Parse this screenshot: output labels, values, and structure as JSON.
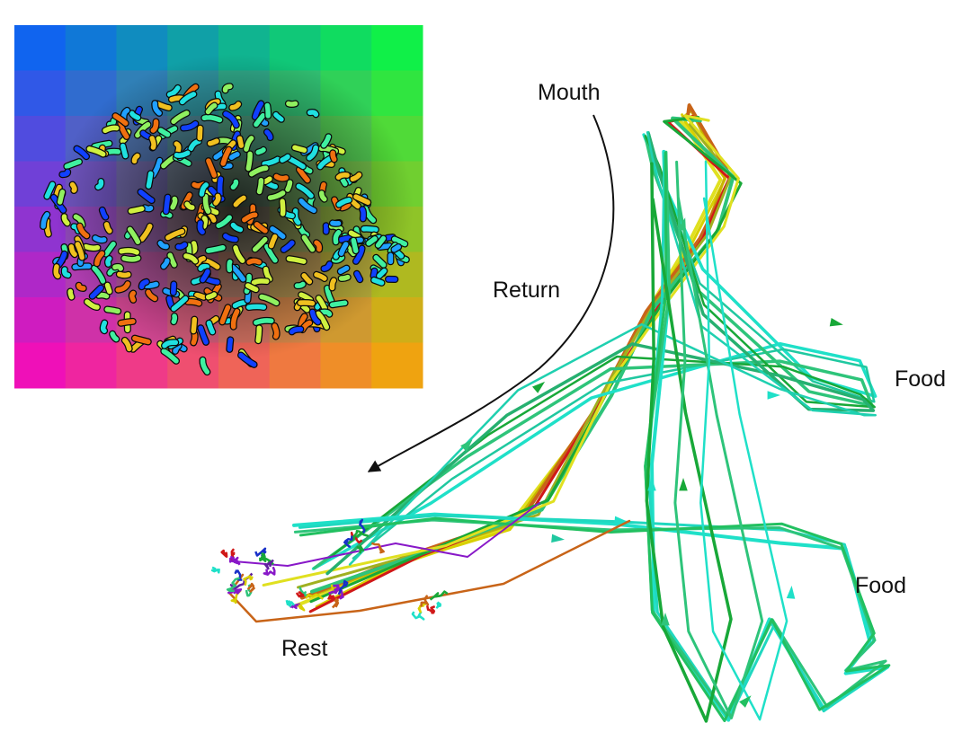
{
  "labels": {
    "mouth": "Mouth",
    "return": "Return",
    "food_upper": "Food",
    "food_lower": "Food",
    "rest": "Rest"
  },
  "colors": {
    "background": "#ffffff",
    "text": "#111111",
    "arrow": "#111111",
    "map_top_left": "#0060ff",
    "map_top_right": "#00ff40",
    "map_bottom_left": "#ff00c0",
    "map_bottom_right": "#ffa800",
    "map_center_dark": "#1a1a1a",
    "trajectory_palette": [
      "#1fe0c8",
      "#2ec47a",
      "#18a838",
      "#e0e020",
      "#c8b400",
      "#c86418",
      "#d01818",
      "#8818c8",
      "#1830c8"
    ]
  },
  "inset": {
    "grid_rows": 8,
    "grid_cols": 8,
    "content": "color-coded embedding map of short trajectory fragments"
  }
}
